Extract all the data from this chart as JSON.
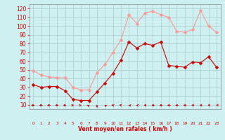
{
  "hours": [
    0,
    1,
    2,
    3,
    4,
    5,
    6,
    7,
    8,
    9,
    10,
    11,
    12,
    13,
    14,
    15,
    16,
    17,
    18,
    19,
    20,
    21,
    22,
    23
  ],
  "wind_avg": [
    33,
    30,
    31,
    31,
    26,
    16,
    15,
    15,
    25,
    35,
    46,
    61,
    82,
    75,
    80,
    78,
    82,
    55,
    54,
    53,
    59,
    58,
    65,
    53
  ],
  "wind_gust": [
    49,
    44,
    42,
    41,
    41,
    30,
    27,
    27,
    47,
    56,
    70,
    84,
    113,
    103,
    115,
    117,
    113,
    110,
    94,
    93,
    96,
    118,
    100,
    93
  ],
  "wind_avg_color": "#cc0000",
  "wind_gust_color": "#ff9999",
  "background_color": "#cef0f0",
  "grid_color": "#aacccc",
  "xlabel": "Vent moyen/en rafales ( km/h )",
  "xlabel_color": "#cc0000",
  "ylabel_ticks": [
    10,
    20,
    30,
    40,
    50,
    60,
    70,
    80,
    90,
    100,
    110,
    120
  ],
  "ylim": [
    5,
    125
  ],
  "xlim": [
    -0.5,
    23.5
  ],
  "tick_color": "#cc0000",
  "markersize": 2.5,
  "linewidth": 0.8,
  "arrow_angles_deg": [
    90,
    90,
    80,
    75,
    65,
    55,
    45,
    10,
    0,
    350,
    340,
    330,
    320,
    310,
    300,
    290,
    280,
    270,
    260,
    250,
    245,
    240,
    235,
    225
  ]
}
